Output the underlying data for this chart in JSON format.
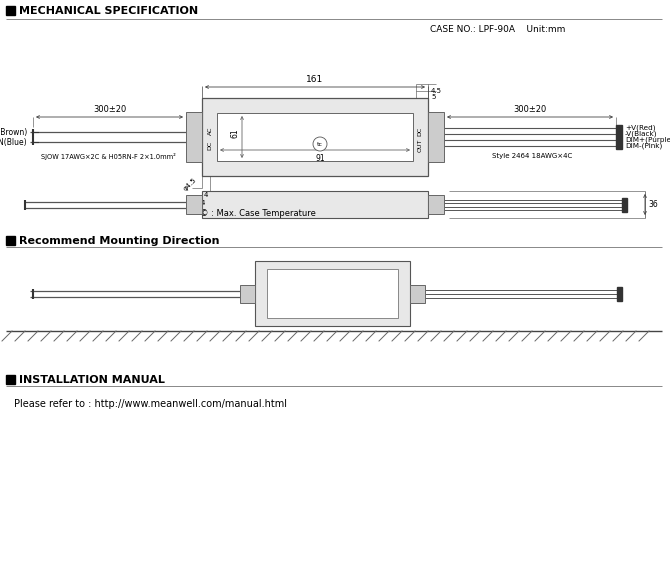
{
  "bg_color": "#ffffff",
  "text_color": "#000000",
  "line_color": "#444444",
  "title1": "MECHANICAL SPECIFICATION",
  "title2": "Recommend Mounting Direction",
  "title3": "INSTALLATION MANUAL",
  "case_no": "CASE NO.: LPF-90A    Unit:mm",
  "install_text": "Please refer to : http://www.meanwell.com/manual.html",
  "temp_note": "· © : Max. Case Temperature",
  "dim_161": "161",
  "dim_91": "91",
  "dim_61": "61",
  "dim_300_left": "300±20",
  "dim_300_right": "300±20",
  "dim_36": "36",
  "ac_label1": "AC/L(Brown)",
  "ac_label2": "AC/N(Blue)",
  "wire_label": "SJOW 17AWG×2C & H05RN-F 2×1.0mm²",
  "dc_label": "Style 2464 18AWG×4C",
  "output_labels": [
    "+V(Red)",
    "-V(Black)",
    "DIM+(Purple)",
    "DIM-(Pink)"
  ],
  "ac_rotated": "AC",
  "dc_rotated": "DC"
}
